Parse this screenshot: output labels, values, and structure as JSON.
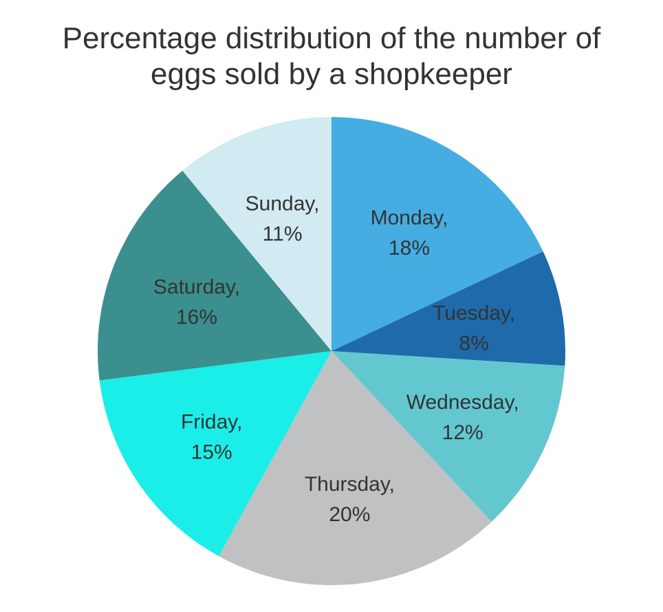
{
  "chart_data": {
    "type": "pie",
    "title_lines": [
      "Percentage distribution of the number of",
      "eggs sold by a shopkeeper"
    ],
    "categories": [
      "Monday",
      "Tuesday",
      "Wednesday",
      "Thursday",
      "Friday",
      "Saturday",
      "Sunday"
    ],
    "values": [
      18,
      8,
      12,
      20,
      15,
      16,
      11
    ],
    "unit": "%",
    "labels": [
      {
        "name": "Monday,",
        "value": "18%"
      },
      {
        "name": "Tuesday,",
        "value": "8%"
      },
      {
        "name": "Wednesday,",
        "value": "12%"
      },
      {
        "name": "Thursday,",
        "value": "20%"
      },
      {
        "name": "Friday,",
        "value": "15%"
      },
      {
        "name": "Saturday,",
        "value": "16%"
      },
      {
        "name": "Sunday,",
        "value": "11%"
      }
    ],
    "colors": [
      "#45ADE2",
      "#1E6AAB",
      "#63C7D0",
      "#C0C1C3",
      "#1BEEE9",
      "#3B8F8E",
      "#D2EAF1"
    ],
    "start_angle": "12 o'clock",
    "direction": "clockwise",
    "legend": "none"
  }
}
